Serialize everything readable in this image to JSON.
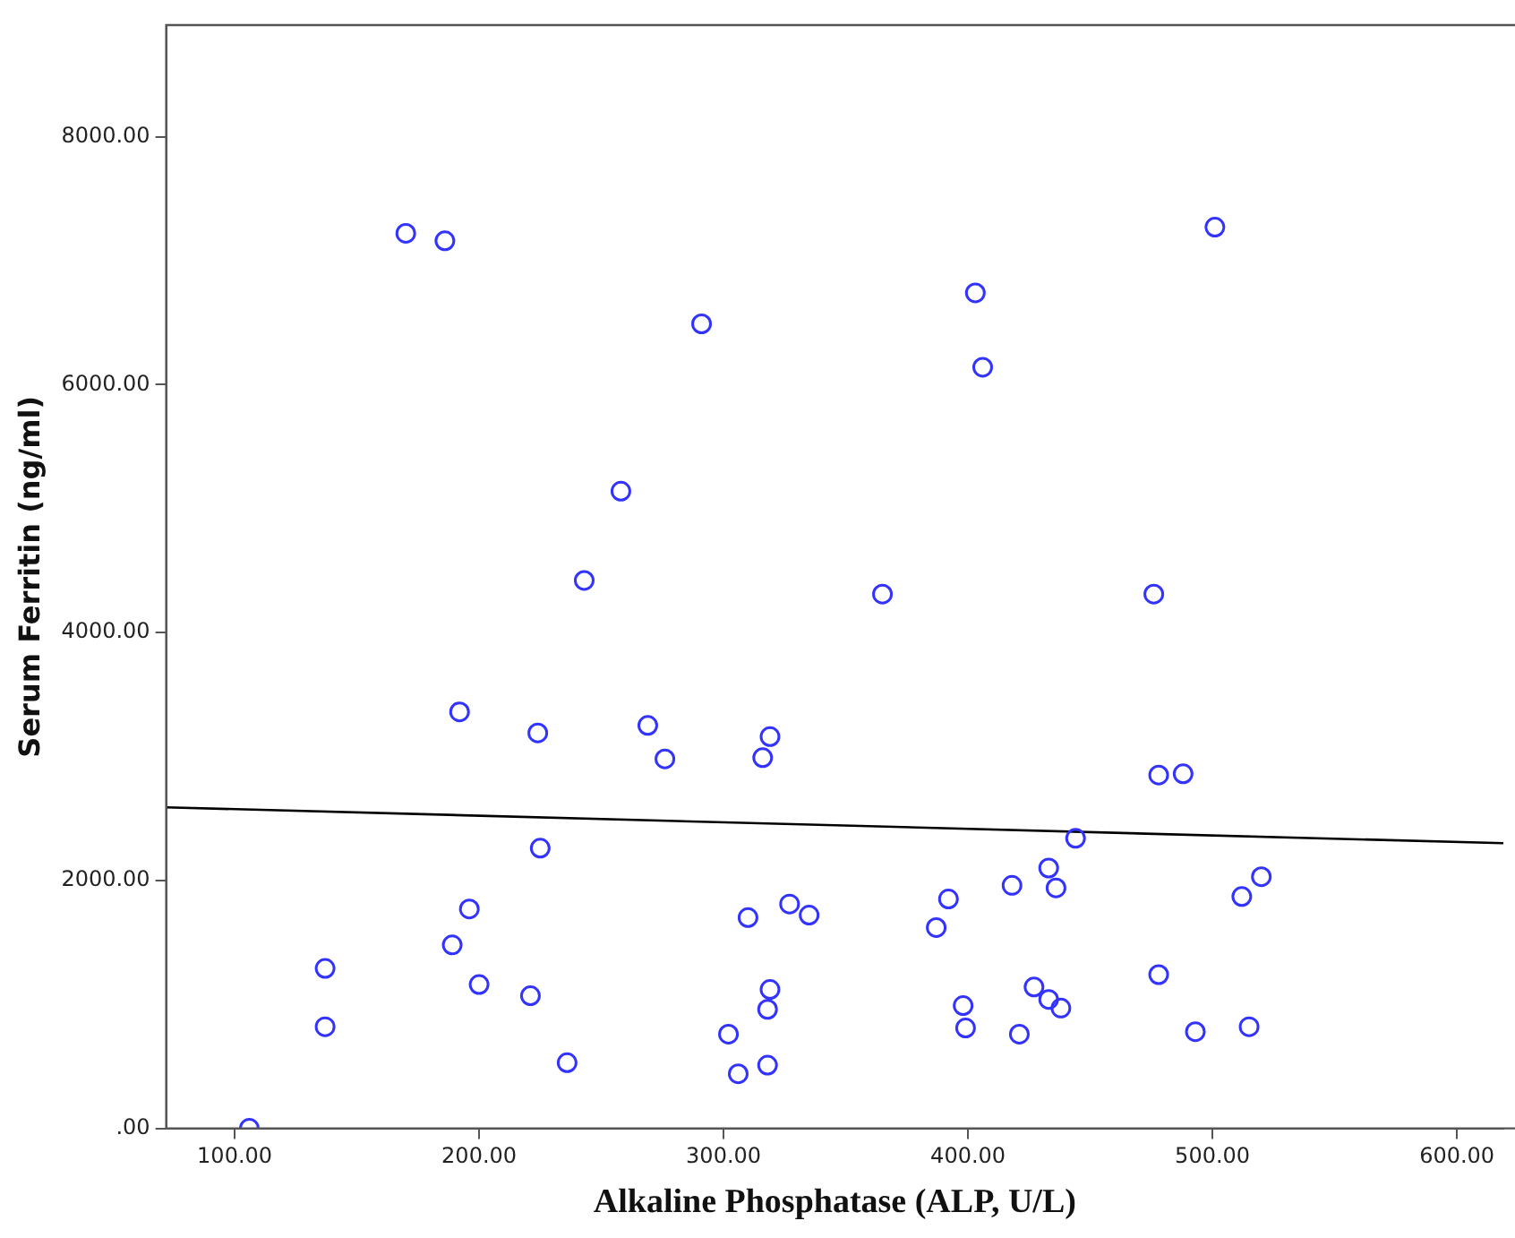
{
  "chart_data": {
    "type": "scatter",
    "xlabel": "Alkaline Phosphatase (ALP, U/L)",
    "ylabel": "Serum Ferritin (ng/ml)",
    "xlim": [
      72,
      619
    ],
    "ylim": [
      0,
      8900
    ],
    "xticks": [
      {
        "value": 100,
        "label": "100.00"
      },
      {
        "value": 200,
        "label": "200.00"
      },
      {
        "value": 300,
        "label": "300.00"
      },
      {
        "value": 400,
        "label": "400.00"
      },
      {
        "value": 500,
        "label": "500.00"
      },
      {
        "value": 600,
        "label": "600.00"
      }
    ],
    "yticks": [
      {
        "value": 0,
        "label": ".00"
      },
      {
        "value": 2000,
        "label": "2000.00"
      },
      {
        "value": 4000,
        "label": "4000.00"
      },
      {
        "value": 6000,
        "label": "6000.00"
      },
      {
        "value": 8000,
        "label": "8000.00"
      }
    ],
    "grid": false,
    "legend": false,
    "marker": "circle",
    "series": [
      {
        "color": "#3333ff",
        "x": [
          106,
          137,
          137,
          189,
          196,
          200,
          221,
          225,
          236,
          302,
          306,
          310,
          318,
          318,
          319,
          327,
          335,
          224,
          269,
          276,
          319,
          316,
          170,
          186,
          291,
          258,
          243,
          192,
          501,
          403,
          406,
          365,
          476,
          478,
          488,
          444,
          433,
          436,
          418,
          392,
          387,
          520,
          512,
          478,
          427,
          433,
          438,
          398,
          399,
          421,
          493,
          515
        ],
        "values": [
          0,
          1290,
          820,
          1480,
          1770,
          1160,
          1070,
          2260,
          530,
          760,
          440,
          1700,
          510,
          960,
          1120,
          1810,
          1720,
          3190,
          3250,
          2980,
          3160,
          2990,
          7220,
          7160,
          6490,
          5140,
          4420,
          3360,
          7270,
          6740,
          6140,
          4310,
          4310,
          2850,
          2860,
          2340,
          2100,
          1940,
          1960,
          1850,
          1620,
          2030,
          1870,
          1240,
          1140,
          1040,
          970,
          990,
          810,
          760,
          780,
          820
        ]
      },
      {
        "type": "line",
        "color": "#000000",
        "marker": "none",
        "line_style": "solid",
        "x": [
          72,
          619
        ],
        "values": [
          2590,
          2300
        ]
      }
    ]
  }
}
